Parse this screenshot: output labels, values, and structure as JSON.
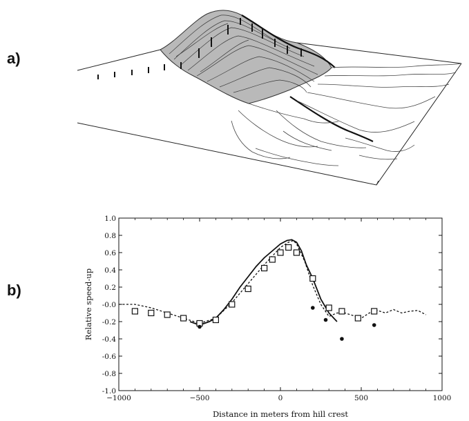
{
  "panels": {
    "a_label": "a)",
    "b_label": "b)"
  },
  "terrain_figure": {
    "description_icon": "3d-terrain-contour-icon"
  },
  "chart_data": {
    "type": "line",
    "title": "",
    "xlabel": "Distance in meters from hill crest",
    "ylabel": "Relative speed-up",
    "xlim": [
      -1000,
      1000
    ],
    "ylim": [
      -1.0,
      1.0
    ],
    "xticks": [
      -1000,
      -500,
      0,
      500,
      1000
    ],
    "xtick_labels": [
      "−1000",
      "−500",
      "0",
      "500",
      "1000"
    ],
    "yticks": [
      1.0,
      0.8,
      0.6,
      0.4,
      0.2,
      0.0,
      -0.2,
      -0.4,
      -0.6,
      -0.8,
      -1.0
    ],
    "ytick_labels": [
      "1.0",
      "0.8",
      "0.6",
      "0.4",
      "0.2",
      "-0.0",
      "-0.2",
      "-0.4",
      "-0.6",
      "-0.8",
      "-1.0"
    ],
    "grid": false,
    "series": [
      {
        "style": "dashed",
        "x": [
          -1000,
          -900,
          -800,
          -700,
          -600,
          -500,
          -400,
          -300,
          -200,
          -100,
          -50,
          0,
          50,
          80,
          100,
          150,
          200,
          250,
          300,
          350,
          400,
          450,
          500,
          550,
          600,
          650,
          700,
          750,
          800,
          850,
          900
        ],
        "y": [
          0.0,
          0.0,
          -0.04,
          -0.1,
          -0.16,
          -0.22,
          -0.16,
          0.02,
          0.24,
          0.46,
          0.56,
          0.66,
          0.72,
          0.74,
          0.7,
          0.5,
          0.22,
          0.0,
          -0.14,
          -0.1,
          -0.1,
          -0.13,
          -0.16,
          -0.1,
          -0.07,
          -0.1,
          -0.06,
          -0.1,
          -0.08,
          -0.07,
          -0.12
        ]
      },
      {
        "style": "solid",
        "x": [
          -560,
          -500,
          -440,
          -400,
          -350,
          -300,
          -250,
          -200,
          -150,
          -100,
          -50,
          0,
          40,
          70,
          100,
          130,
          160,
          200,
          250,
          300,
          350
        ],
        "y": [
          -0.2,
          -0.24,
          -0.2,
          -0.16,
          -0.06,
          0.06,
          0.2,
          0.32,
          0.44,
          0.54,
          0.62,
          0.7,
          0.74,
          0.75,
          0.72,
          0.62,
          0.46,
          0.3,
          0.06,
          -0.1,
          -0.2
        ]
      }
    ],
    "squares": {
      "x": [
        -900,
        -800,
        -700,
        -600,
        -500,
        -400,
        -300,
        -200,
        -100,
        -50,
        0,
        50,
        100,
        200,
        300,
        380,
        480,
        580
      ],
      "y": [
        -0.08,
        -0.1,
        -0.12,
        -0.16,
        -0.22,
        -0.18,
        0.0,
        0.18,
        0.42,
        0.52,
        0.6,
        0.66,
        0.6,
        0.3,
        -0.04,
        -0.08,
        -0.16,
        -0.08
      ]
    },
    "dots": {
      "x": [
        -500,
        200,
        280,
        380,
        580
      ],
      "y": [
        -0.26,
        -0.04,
        -0.18,
        -0.4,
        -0.24
      ]
    }
  }
}
